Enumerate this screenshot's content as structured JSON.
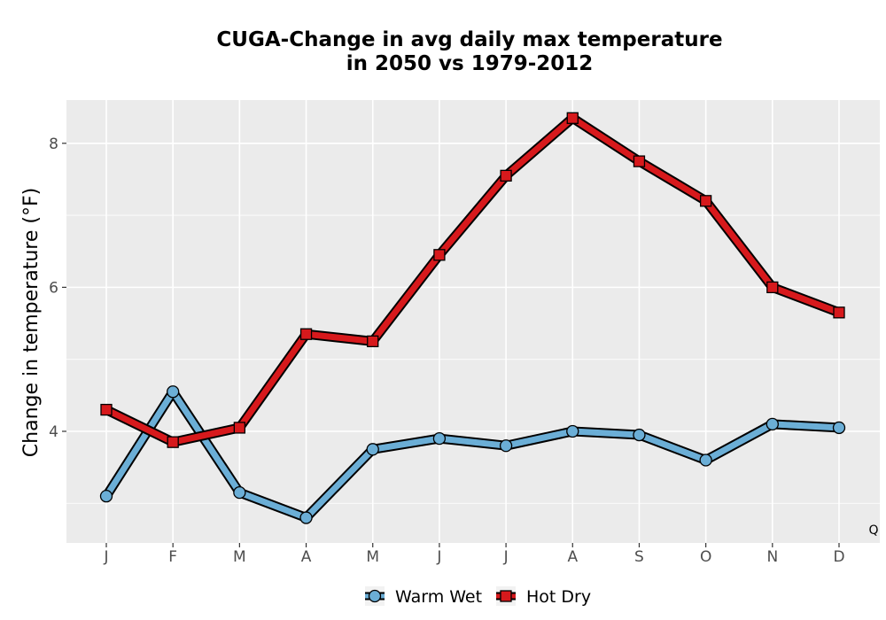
{
  "chart_data": {
    "type": "line",
    "title_lines": [
      "CUGA-Change in avg daily max temperature",
      "in 2050 vs 1979-2012"
    ],
    "xlabel": "",
    "ylabel": "Change in temperature (°F)",
    "categories": [
      "J",
      "F",
      "M",
      "A",
      "M",
      "J",
      "J",
      "A",
      "S",
      "O",
      "N",
      "D"
    ],
    "y_ticks": [
      4,
      6,
      8
    ],
    "ylim": [
      2.45,
      8.6
    ],
    "grid": true,
    "legend_position": "bottom",
    "series": [
      {
        "name": "Warm Wet",
        "color": "#6BAED6",
        "marker": "circle",
        "values": [
          3.1,
          4.55,
          3.15,
          2.8,
          3.75,
          3.9,
          3.8,
          4.0,
          3.95,
          3.6,
          4.1,
          4.05
        ]
      },
      {
        "name": "Hot Dry",
        "color": "#D7191C",
        "marker": "square",
        "values": [
          4.3,
          3.85,
          4.05,
          5.35,
          5.25,
          6.45,
          7.55,
          8.35,
          7.75,
          7.2,
          6.0,
          5.65
        ]
      }
    ],
    "corner_label": "Q"
  }
}
